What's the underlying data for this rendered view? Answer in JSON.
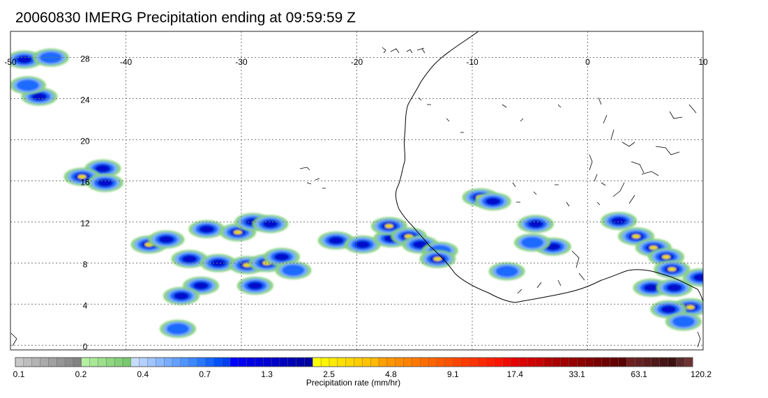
{
  "title": "20060830 IMERG Precipitation ending at 09:59:59 Z",
  "map": {
    "lon_range": [
      -50,
      10
    ],
    "lat_range": [
      -1,
      31
    ],
    "lon_ticks": [
      "-50",
      "-40",
      "-30",
      "-20",
      "-10",
      "0",
      "10"
    ],
    "lat_ticks": [
      "28",
      "24",
      "20",
      "16",
      "12",
      "8",
      "4",
      "0"
    ],
    "grid": "dotted",
    "land_outline": "Coastline of West Africa (Senegal to Cameroon)"
  },
  "colorbar": {
    "label": "Precipitation rate (mm/hr)",
    "tick_labels": [
      "0.1",
      "0.2",
      "0.4",
      "0.7",
      "1.3",
      "2.5",
      "4.8",
      "9.1",
      "17.4",
      "33.1",
      "63.1",
      "120.2"
    ],
    "groups": [
      {
        "name": "gray",
        "colors": [
          "#c8c8c8",
          "#bebebe",
          "#b4b4b4",
          "#aaaaaa",
          "#a0a0a0",
          "#969696",
          "#8c8c8c",
          "#828282"
        ]
      },
      {
        "name": "green",
        "colors": [
          "#b4f0a0",
          "#a8e896",
          "#9ce08c",
          "#90d882",
          "#84d078",
          "#78c86e"
        ]
      },
      {
        "name": "light-blue",
        "colors": [
          "#c8dcff",
          "#b4d0ff",
          "#a0c4ff",
          "#8cb8ff",
          "#78acff",
          "#64a0ff",
          "#5094ff",
          "#3c88ff",
          "#2878ff",
          "#1464ff",
          "#0050ff",
          "#0040f0"
        ]
      },
      {
        "name": "blue",
        "colors": [
          "#0000ff",
          "#0000f0",
          "#0000e6",
          "#0000dc",
          "#0000d2",
          "#0000c8",
          "#0000be",
          "#0000b4",
          "#0000aa",
          "#0000a0"
        ]
      },
      {
        "name": "yellow",
        "colors": [
          "#ffff00",
          "#fff500",
          "#ffeb00",
          "#ffe100",
          "#ffd700",
          "#ffcd00",
          "#ffc300",
          "#ffb900"
        ]
      },
      {
        "name": "orange",
        "colors": [
          "#ffa000",
          "#ff9600",
          "#ff8c00",
          "#ff8200",
          "#ff7800",
          "#ff6e00",
          "#ff6400",
          "#ff5a00",
          "#ff5000",
          "#ff4600"
        ]
      },
      {
        "name": "red",
        "colors": [
          "#ff3c00",
          "#ff3200",
          "#ff2800",
          "#ff1e00",
          "#ff1400",
          "#f00a00",
          "#e60000",
          "#dc0000",
          "#d20000",
          "#c80000"
        ]
      },
      {
        "name": "dark-red",
        "colors": [
          "#b40000",
          "#aa0000",
          "#a00000",
          "#960000",
          "#8c0000",
          "#820000",
          "#780000",
          "#6e0000",
          "#640000",
          "#5a0000"
        ]
      },
      {
        "name": "brown",
        "colors": [
          "#6e1e1e",
          "#642020",
          "#5a1c1c",
          "#501818",
          "#461414",
          "#3c1010",
          "#5a2828",
          "#6e3232"
        ]
      }
    ]
  },
  "rain_cells": [
    {
      "lon": -48.8,
      "lat": 28.0,
      "peak": 2
    },
    {
      "lon": -46.5,
      "lat": 28.2,
      "peak": 1
    },
    {
      "lon": -47.5,
      "lat": 24.4,
      "peak": 2
    },
    {
      "lon": -48.5,
      "lat": 25.5,
      "peak": 1
    },
    {
      "lon": -42.0,
      "lat": 17.4,
      "peak": 2
    },
    {
      "lon": -43.8,
      "lat": 16.6,
      "peak": 3
    },
    {
      "lon": -41.8,
      "lat": 16.0,
      "peak": 2
    },
    {
      "lon": -38.0,
      "lat": 10.0,
      "peak": 4
    },
    {
      "lon": -36.5,
      "lat": 10.5,
      "peak": 2
    },
    {
      "lon": -34.5,
      "lat": 8.6,
      "peak": 2
    },
    {
      "lon": -33.0,
      "lat": 11.5,
      "peak": 2
    },
    {
      "lon": -32.0,
      "lat": 8.2,
      "peak": 2
    },
    {
      "lon": -30.3,
      "lat": 11.2,
      "peak": 3
    },
    {
      "lon": -29.0,
      "lat": 12.2,
      "peak": 2
    },
    {
      "lon": -27.5,
      "lat": 12.0,
      "peak": 2
    },
    {
      "lon": -29.5,
      "lat": 8.0,
      "peak": 3
    },
    {
      "lon": -27.8,
      "lat": 8.2,
      "peak": 3
    },
    {
      "lon": -26.5,
      "lat": 8.8,
      "peak": 2
    },
    {
      "lon": -28.8,
      "lat": 6.0,
      "peak": 2
    },
    {
      "lon": -25.5,
      "lat": 7.5,
      "peak": 1
    },
    {
      "lon": -33.5,
      "lat": 6.0,
      "peak": 2
    },
    {
      "lon": -35.2,
      "lat": 5.0,
      "peak": 2
    },
    {
      "lon": -35.5,
      "lat": 1.8,
      "peak": 1
    },
    {
      "lon": -21.8,
      "lat": 10.4,
      "peak": 2
    },
    {
      "lon": -19.5,
      "lat": 10.0,
      "peak": 2
    },
    {
      "lon": -17.0,
      "lat": 10.6,
      "peak": 2
    },
    {
      "lon": -17.2,
      "lat": 11.8,
      "peak": 3
    },
    {
      "lon": -15.5,
      "lat": 10.8,
      "peak": 3
    },
    {
      "lon": -14.5,
      "lat": 10.0,
      "peak": 2
    },
    {
      "lon": -12.8,
      "lat": 9.4,
      "peak": 1
    },
    {
      "lon": -13.0,
      "lat": 8.6,
      "peak": 3
    },
    {
      "lon": -9.3,
      "lat": 14.6,
      "peak": 3
    },
    {
      "lon": -8.2,
      "lat": 14.2,
      "peak": 2
    },
    {
      "lon": -4.5,
      "lat": 12.0,
      "peak": 2
    },
    {
      "lon": -3.0,
      "lat": 9.8,
      "peak": 2
    },
    {
      "lon": -4.8,
      "lat": 10.2,
      "peak": 1
    },
    {
      "lon": -7.0,
      "lat": 7.4,
      "peak": 1
    },
    {
      "lon": 2.7,
      "lat": 12.3,
      "peak": 2
    },
    {
      "lon": 4.2,
      "lat": 10.8,
      "peak": 3
    },
    {
      "lon": 5.7,
      "lat": 9.7,
      "peak": 3
    },
    {
      "lon": 6.8,
      "lat": 8.8,
      "peak": 3
    },
    {
      "lon": 7.3,
      "lat": 7.6,
      "peak": 3
    },
    {
      "lon": 5.5,
      "lat": 5.8,
      "peak": 2
    },
    {
      "lon": 7.5,
      "lat": 5.8,
      "peak": 2
    },
    {
      "lon": 8.9,
      "lat": 3.9,
      "peak": 3
    },
    {
      "lon": 7.0,
      "lat": 3.7,
      "peak": 2
    },
    {
      "lon": 9.8,
      "lat": 6.8,
      "peak": 2
    },
    {
      "lon": 8.3,
      "lat": 2.5,
      "peak": 1
    }
  ]
}
